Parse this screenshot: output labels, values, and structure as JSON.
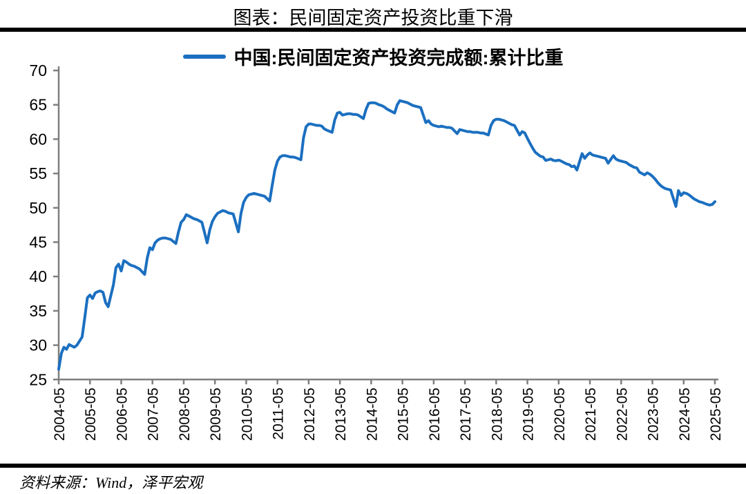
{
  "page": {
    "title": "图表：民间固定资产投资比重下滑",
    "source": "资料来源：Wind，泽平宏观"
  },
  "chart_data": {
    "type": "line",
    "title": "图表：民间固定资产投资比重下滑",
    "legend_position": "top",
    "grid": false,
    "ylim": [
      25,
      70
    ],
    "ytick_interval": 5,
    "yticks": [
      70,
      65,
      60,
      55,
      50,
      45,
      40,
      35,
      30,
      25
    ],
    "xticks": [
      "2004-05",
      "2005-05",
      "2006-05",
      "2007-05",
      "2008-05",
      "2009-05",
      "2010-05",
      "2011-05",
      "2012-05",
      "2013-05",
      "2014-05",
      "2015-05",
      "2016-05",
      "2017-05",
      "2018-05",
      "2019-05",
      "2020-05",
      "2021-05",
      "2022-05",
      "2023-05",
      "2024-05",
      "2025-05"
    ],
    "style": {
      "line_color": "#1B6FC0",
      "axis_color": "#7F7F7F",
      "rule_color": "#000000",
      "text_color": "#000000"
    },
    "series": [
      {
        "name": "中国:民间固定资产投资完成额:累计比重",
        "color": "#1B6FC0",
        "points": [
          [
            "2004-05",
            26.5
          ],
          [
            "2004-06",
            28.8
          ],
          [
            "2004-07",
            29.7
          ],
          [
            "2004-08",
            29.4
          ],
          [
            "2004-09",
            30.1
          ],
          [
            "2004-10",
            29.9
          ],
          [
            "2004-11",
            29.7
          ],
          [
            "2004-12",
            30.0
          ],
          [
            "2005-02",
            31.2
          ],
          [
            "2005-03",
            34.0
          ],
          [
            "2005-04",
            36.9
          ],
          [
            "2005-05",
            37.3
          ],
          [
            "2005-06",
            36.8
          ],
          [
            "2005-07",
            37.6
          ],
          [
            "2005-08",
            37.8
          ],
          [
            "2005-09",
            37.9
          ],
          [
            "2005-10",
            37.7
          ],
          [
            "2005-11",
            36.2
          ],
          [
            "2005-12",
            35.6
          ],
          [
            "2006-02",
            38.8
          ],
          [
            "2006-03",
            41.3
          ],
          [
            "2006-04",
            41.8
          ],
          [
            "2006-05",
            40.8
          ],
          [
            "2006-06",
            42.3
          ],
          [
            "2006-07",
            42.1
          ],
          [
            "2006-08",
            41.8
          ],
          [
            "2006-09",
            41.6
          ],
          [
            "2006-10",
            41.5
          ],
          [
            "2006-11",
            41.3
          ],
          [
            "2006-12",
            41.1
          ],
          [
            "2007-02",
            40.3
          ],
          [
            "2007-03",
            42.7
          ],
          [
            "2007-04",
            44.2
          ],
          [
            "2007-05",
            43.9
          ],
          [
            "2007-06",
            44.9
          ],
          [
            "2007-07",
            45.3
          ],
          [
            "2007-08",
            45.5
          ],
          [
            "2007-09",
            45.6
          ],
          [
            "2007-10",
            45.6
          ],
          [
            "2007-11",
            45.5
          ],
          [
            "2007-12",
            45.4
          ],
          [
            "2008-02",
            44.8
          ],
          [
            "2008-03",
            46.5
          ],
          [
            "2008-04",
            47.9
          ],
          [
            "2008-05",
            48.3
          ],
          [
            "2008-06",
            49.0
          ],
          [
            "2008-07",
            48.8
          ],
          [
            "2008-08",
            48.6
          ],
          [
            "2008-09",
            48.4
          ],
          [
            "2008-10",
            48.3
          ],
          [
            "2008-11",
            48.1
          ],
          [
            "2008-12",
            47.9
          ],
          [
            "2009-02",
            44.9
          ],
          [
            "2009-03",
            46.8
          ],
          [
            "2009-04",
            48.0
          ],
          [
            "2009-05",
            48.7
          ],
          [
            "2009-06",
            49.2
          ],
          [
            "2009-07",
            49.4
          ],
          [
            "2009-08",
            49.6
          ],
          [
            "2009-09",
            49.5
          ],
          [
            "2009-10",
            49.3
          ],
          [
            "2009-11",
            49.2
          ],
          [
            "2009-12",
            49.1
          ],
          [
            "2010-02",
            46.5
          ],
          [
            "2010-03",
            49.2
          ],
          [
            "2010-04",
            50.8
          ],
          [
            "2010-05",
            51.5
          ],
          [
            "2010-06",
            51.9
          ],
          [
            "2010-07",
            52.0
          ],
          [
            "2010-08",
            52.1
          ],
          [
            "2010-09",
            52.0
          ],
          [
            "2010-10",
            51.9
          ],
          [
            "2010-11",
            51.8
          ],
          [
            "2010-12",
            51.7
          ],
          [
            "2011-02",
            51.0
          ],
          [
            "2011-03",
            53.3
          ],
          [
            "2011-04",
            55.5
          ],
          [
            "2011-05",
            56.8
          ],
          [
            "2011-06",
            57.4
          ],
          [
            "2011-07",
            57.6
          ],
          [
            "2011-08",
            57.6
          ],
          [
            "2011-09",
            57.5
          ],
          [
            "2011-10",
            57.4
          ],
          [
            "2011-11",
            57.4
          ],
          [
            "2011-12",
            57.3
          ],
          [
            "2012-02",
            57.0
          ],
          [
            "2012-03",
            60.2
          ],
          [
            "2012-04",
            61.8
          ],
          [
            "2012-05",
            62.2
          ],
          [
            "2012-06",
            62.2
          ],
          [
            "2012-07",
            62.1
          ],
          [
            "2012-08",
            62.0
          ],
          [
            "2012-09",
            62.0
          ],
          [
            "2012-10",
            61.9
          ],
          [
            "2012-11",
            61.5
          ],
          [
            "2012-12",
            61.3
          ],
          [
            "2013-02",
            61.0
          ],
          [
            "2013-03",
            62.8
          ],
          [
            "2013-04",
            63.8
          ],
          [
            "2013-05",
            63.9
          ],
          [
            "2013-06",
            63.5
          ],
          [
            "2013-07",
            63.6
          ],
          [
            "2013-08",
            63.7
          ],
          [
            "2013-09",
            63.7
          ],
          [
            "2013-10",
            63.6
          ],
          [
            "2013-11",
            63.6
          ],
          [
            "2013-12",
            63.5
          ],
          [
            "2014-02",
            63.0
          ],
          [
            "2014-03",
            64.3
          ],
          [
            "2014-04",
            65.2
          ],
          [
            "2014-05",
            65.3
          ],
          [
            "2014-06",
            65.3
          ],
          [
            "2014-07",
            65.2
          ],
          [
            "2014-08",
            65.0
          ],
          [
            "2014-09",
            64.9
          ],
          [
            "2014-10",
            64.7
          ],
          [
            "2014-11",
            64.4
          ],
          [
            "2014-12",
            64.2
          ],
          [
            "2015-02",
            63.8
          ],
          [
            "2015-03",
            65.0
          ],
          [
            "2015-04",
            65.6
          ],
          [
            "2015-05",
            65.5
          ],
          [
            "2015-06",
            65.4
          ],
          [
            "2015-07",
            65.3
          ],
          [
            "2015-08",
            65.1
          ],
          [
            "2015-09",
            64.9
          ],
          [
            "2015-10",
            64.8
          ],
          [
            "2015-11",
            64.7
          ],
          [
            "2015-12",
            64.6
          ],
          [
            "2016-02",
            62.4
          ],
          [
            "2016-03",
            62.7
          ],
          [
            "2016-04",
            62.2
          ],
          [
            "2016-05",
            62.0
          ],
          [
            "2016-06",
            61.9
          ],
          [
            "2016-07",
            61.8
          ],
          [
            "2016-08",
            61.9
          ],
          [
            "2016-09",
            61.8
          ],
          [
            "2016-10",
            61.7
          ],
          [
            "2016-11",
            61.7
          ],
          [
            "2016-12",
            61.6
          ],
          [
            "2017-02",
            60.8
          ],
          [
            "2017-03",
            61.4
          ],
          [
            "2017-04",
            61.3
          ],
          [
            "2017-05",
            61.2
          ],
          [
            "2017-06",
            61.1
          ],
          [
            "2017-07",
            61.1
          ],
          [
            "2017-08",
            61.0
          ],
          [
            "2017-09",
            61.0
          ],
          [
            "2017-10",
            61.0
          ],
          [
            "2017-11",
            60.9
          ],
          [
            "2017-12",
            60.9
          ],
          [
            "2018-02",
            60.6
          ],
          [
            "2018-03",
            62.0
          ],
          [
            "2018-04",
            62.7
          ],
          [
            "2018-05",
            62.9
          ],
          [
            "2018-06",
            62.9
          ],
          [
            "2018-07",
            62.8
          ],
          [
            "2018-08",
            62.7
          ],
          [
            "2018-09",
            62.5
          ],
          [
            "2018-10",
            62.3
          ],
          [
            "2018-11",
            62.1
          ],
          [
            "2018-12",
            62.0
          ],
          [
            "2019-02",
            60.6
          ],
          [
            "2019-03",
            61.1
          ],
          [
            "2019-04",
            60.9
          ],
          [
            "2019-05",
            60.1
          ],
          [
            "2019-06",
            59.4
          ],
          [
            "2019-07",
            58.7
          ],
          [
            "2019-08",
            58.1
          ],
          [
            "2019-09",
            57.8
          ],
          [
            "2019-10",
            57.5
          ],
          [
            "2019-11",
            57.4
          ],
          [
            "2019-12",
            56.9
          ],
          [
            "2020-02",
            57.1
          ],
          [
            "2020-03",
            56.9
          ],
          [
            "2020-04",
            56.85
          ],
          [
            "2020-05",
            56.95
          ],
          [
            "2020-06",
            56.8
          ],
          [
            "2020-07",
            56.6
          ],
          [
            "2020-08",
            56.4
          ],
          [
            "2020-09",
            56.3
          ],
          [
            "2020-10",
            56.0
          ],
          [
            "2020-11",
            56.1
          ],
          [
            "2020-12",
            55.5
          ],
          [
            "2021-02",
            57.9
          ],
          [
            "2021-03",
            57.2
          ],
          [
            "2021-04",
            57.7
          ],
          [
            "2021-05",
            58.0
          ],
          [
            "2021-06",
            57.7
          ],
          [
            "2021-07",
            57.6
          ],
          [
            "2021-08",
            57.5
          ],
          [
            "2021-09",
            57.4
          ],
          [
            "2021-10",
            57.3
          ],
          [
            "2021-11",
            57.2
          ],
          [
            "2021-12",
            56.5
          ],
          [
            "2022-02",
            57.6
          ],
          [
            "2022-03",
            57.1
          ],
          [
            "2022-04",
            56.9
          ],
          [
            "2022-05",
            56.8
          ],
          [
            "2022-06",
            56.7
          ],
          [
            "2022-07",
            56.6
          ],
          [
            "2022-08",
            56.3
          ],
          [
            "2022-09",
            56.1
          ],
          [
            "2022-10",
            55.9
          ],
          [
            "2022-11",
            55.8
          ],
          [
            "2022-12",
            55.2
          ],
          [
            "2023-02",
            54.8
          ],
          [
            "2023-03",
            55.1
          ],
          [
            "2023-04",
            54.9
          ],
          [
            "2023-05",
            54.6
          ],
          [
            "2023-06",
            54.2
          ],
          [
            "2023-07",
            53.7
          ],
          [
            "2023-08",
            53.3
          ],
          [
            "2023-09",
            53.0
          ],
          [
            "2023-10",
            52.8
          ],
          [
            "2023-11",
            52.7
          ],
          [
            "2023-12",
            52.6
          ],
          [
            "2024-02",
            50.2
          ],
          [
            "2024-03",
            52.5
          ],
          [
            "2024-04",
            51.8
          ],
          [
            "2024-05",
            52.2
          ],
          [
            "2024-06",
            52.1
          ],
          [
            "2024-07",
            51.9
          ],
          [
            "2024-08",
            51.6
          ],
          [
            "2024-09",
            51.3
          ],
          [
            "2024-10",
            51.1
          ],
          [
            "2024-11",
            50.9
          ],
          [
            "2024-12",
            50.8
          ],
          [
            "2025-02",
            50.5
          ],
          [
            "2025-03",
            50.4
          ],
          [
            "2025-04",
            50.5
          ],
          [
            "2025-05",
            50.9
          ]
        ]
      }
    ]
  }
}
